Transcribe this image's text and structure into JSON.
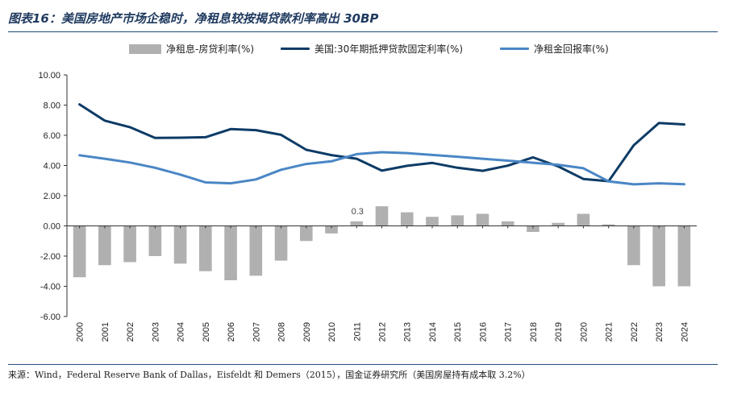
{
  "header": {
    "title": "图表16：美国房地产市场企稳时，净租息较按揭贷款利率高出 30BP"
  },
  "footer": {
    "source": "来源：Wind，Federal Reserve Bank of Dallas，Eisfeldt 和 Demers（2015），国金证券研究所（美国房屋持有成本取 3.2%）"
  },
  "colors": {
    "bar": "#b0b0b0",
    "mortgage": "#0d3b66",
    "rent": "#4a86c5",
    "rule": "#1f4e79"
  },
  "chart_data": {
    "type": "bar+line",
    "title": "图表16：美国房地产市场企稳时，净租息较按揭贷款利率高出 30BP",
    "xlabel": "",
    "ylabel": "",
    "ylim": [
      -6,
      10
    ],
    "yticks": [
      10,
      8,
      6,
      4,
      2,
      0,
      -2,
      -4,
      -6
    ],
    "ytick_labels": [
      "10.00",
      "8.00",
      "6.00",
      "4.00",
      "2.00",
      "0.00",
      "-2.00",
      "-4.00",
      "-6.00"
    ],
    "legend_position": "top-center",
    "categories": [
      "2000",
      "2001",
      "2002",
      "2003",
      "2004",
      "2005",
      "2006",
      "2007",
      "2008",
      "2009",
      "2010",
      "2011",
      "2012",
      "2013",
      "2014",
      "2015",
      "2016",
      "2017",
      "2018",
      "2019",
      "2020",
      "2021",
      "2022",
      "2023",
      "2024"
    ],
    "series": [
      {
        "name": "净租息-房贷利率(%)",
        "kind": "bar",
        "values": [
          -3.4,
          -2.6,
          -2.4,
          -2.0,
          -2.5,
          -3.0,
          -3.6,
          -3.3,
          -2.3,
          -1.0,
          -0.5,
          0.3,
          1.3,
          0.9,
          0.6,
          0.7,
          0.8,
          0.3,
          -0.4,
          0.2,
          0.8,
          0.1,
          -2.6,
          -4.0,
          -4.0
        ]
      },
      {
        "name": "美国:30年期抵押贷款固定利率(%)",
        "kind": "line",
        "values": [
          8.05,
          6.97,
          6.54,
          5.83,
          5.84,
          5.87,
          6.41,
          6.34,
          6.03,
          5.04,
          4.69,
          4.45,
          3.66,
          3.98,
          4.17,
          3.85,
          3.65,
          3.99,
          4.54,
          3.94,
          3.11,
          2.96,
          5.34,
          6.81,
          6.72
        ]
      },
      {
        "name": "净租金回报率(%)",
        "kind": "line",
        "values": [
          4.68,
          4.45,
          4.2,
          3.85,
          3.4,
          2.88,
          2.82,
          3.08,
          3.72,
          4.1,
          4.28,
          4.75,
          4.88,
          4.82,
          4.7,
          4.58,
          4.45,
          4.32,
          4.18,
          4.05,
          3.82,
          2.95,
          2.75,
          2.82,
          2.76
        ]
      }
    ],
    "annotations": [
      {
        "category": "2011",
        "text": "0.3"
      }
    ]
  }
}
